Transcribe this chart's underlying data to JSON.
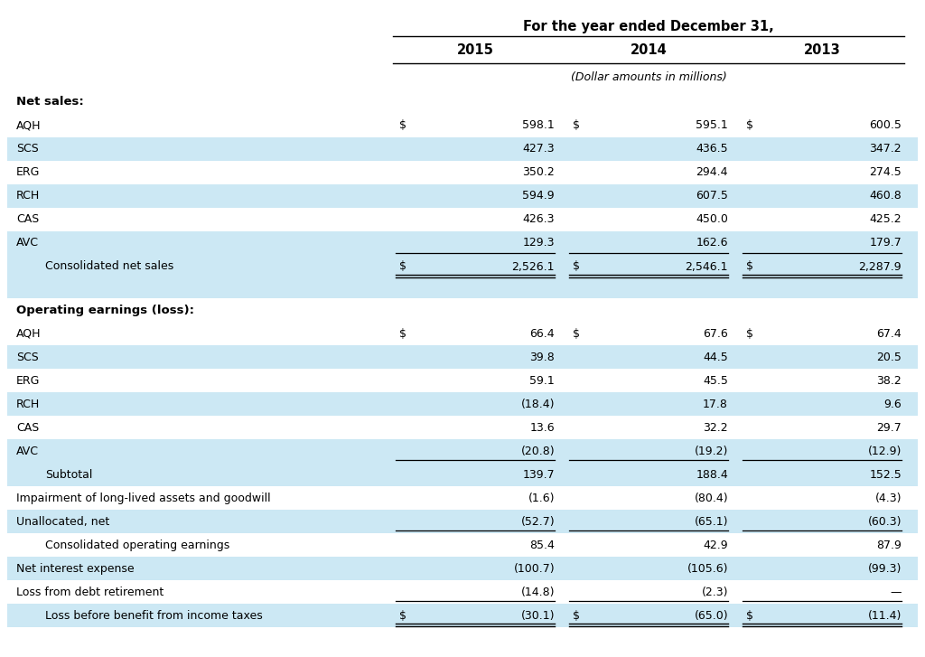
{
  "title_main": "For the year ended December 31,",
  "subtitle": "(Dollar amounts in millions)",
  "col_headers": [
    "2015",
    "2014",
    "2013"
  ],
  "bg_color": "#ffffff",
  "highlight_color": "#cce8f4",
  "net_sales_section_label": "Net sales:",
  "net_sales_rows": [
    {
      "label": "AQH",
      "dollar": true,
      "vals": [
        "598.1",
        "595.1",
        "600.5"
      ],
      "hl": false
    },
    {
      "label": "SCS",
      "dollar": false,
      "vals": [
        "427.3",
        "436.5",
        "347.2"
      ],
      "hl": true
    },
    {
      "label": "ERG",
      "dollar": false,
      "vals": [
        "350.2",
        "294.4",
        "274.5"
      ],
      "hl": false
    },
    {
      "label": "RCH",
      "dollar": false,
      "vals": [
        "594.9",
        "607.5",
        "460.8"
      ],
      "hl": true
    },
    {
      "label": "CAS",
      "dollar": false,
      "vals": [
        "426.3",
        "450.0",
        "425.2"
      ],
      "hl": false
    },
    {
      "label": "AVC",
      "dollar": false,
      "vals": [
        "129.3",
        "162.6",
        "179.7"
      ],
      "hl": true,
      "ul": 1
    }
  ],
  "net_sales_total": {
    "label": "Consolidated net sales",
    "indent": true,
    "dollar": true,
    "vals": [
      "2,526.1",
      "2,546.1",
      "2,287.9"
    ],
    "hl": true,
    "ul": 2
  },
  "gap_row": {
    "hl": true
  },
  "op_section_label": "Operating earnings (loss):",
  "op_rows": [
    {
      "label": "AQH",
      "dollar": true,
      "vals": [
        "66.4",
        "67.6",
        "67.4"
      ],
      "hl": false
    },
    {
      "label": "SCS",
      "dollar": false,
      "vals": [
        "39.8",
        "44.5",
        "20.5"
      ],
      "hl": true
    },
    {
      "label": "ERG",
      "dollar": false,
      "vals": [
        "59.1",
        "45.5",
        "38.2"
      ],
      "hl": false
    },
    {
      "label": "RCH",
      "dollar": false,
      "vals": [
        "(18.4)",
        "17.8",
        "9.6"
      ],
      "hl": true
    },
    {
      "label": "CAS",
      "dollar": false,
      "vals": [
        "13.6",
        "32.2",
        "29.7"
      ],
      "hl": false
    },
    {
      "label": "AVC",
      "dollar": false,
      "vals": [
        "(20.8)",
        "(19.2)",
        "(12.9)"
      ],
      "hl": true,
      "ul": 1
    }
  ],
  "op_subtotal": {
    "label": "Subtotal",
    "indent": true,
    "dollar": false,
    "vals": [
      "139.7",
      "188.4",
      "152.5"
    ],
    "hl": true
  },
  "op_extra": [
    {
      "label": "Impairment of long-lived assets and goodwill",
      "dollar": false,
      "vals": [
        "(1.6)",
        "(80.4)",
        "(4.3)"
      ],
      "hl": false
    },
    {
      "label": "Unallocated, net",
      "dollar": false,
      "vals": [
        "(52.7)",
        "(65.1)",
        "(60.3)"
      ],
      "hl": true,
      "ul": 1
    },
    {
      "label": "Consolidated operating earnings",
      "indent": true,
      "dollar": false,
      "vals": [
        "85.4",
        "42.9",
        "87.9"
      ],
      "hl": false
    },
    {
      "label": "Net interest expense",
      "dollar": false,
      "vals": [
        "(100.7)",
        "(105.6)",
        "(99.3)"
      ],
      "hl": true
    },
    {
      "label": "Loss from debt retirement",
      "dollar": false,
      "vals": [
        "(14.8)",
        "(2.3)",
        "—"
      ],
      "hl": false,
      "ul": 1
    }
  ],
  "op_total": {
    "label": "Loss before benefit from income taxes",
    "indent": true,
    "dollar": true,
    "vals": [
      "(30.1)",
      "(65.0)",
      "(11.4)"
    ],
    "hl": true,
    "ul": 2
  }
}
